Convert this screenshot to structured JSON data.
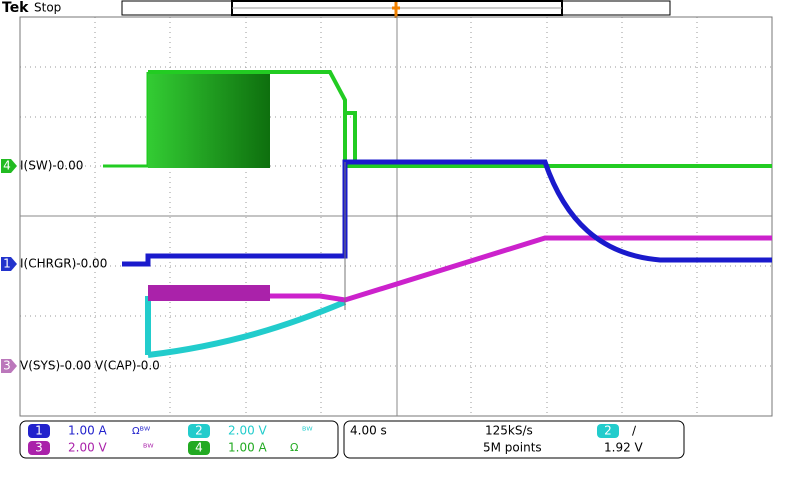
{
  "header": {
    "brand": "Tek",
    "status": "Stop"
  },
  "channel_labels": [
    {
      "badge": "4",
      "text": "I(SW)-0.00"
    },
    {
      "badge": "1",
      "text": "I(CHRGR)-0.00"
    },
    {
      "badge": "3",
      "text": "V(SYS)-0.00 V(CAP)-0.0"
    }
  ],
  "channels": [
    {
      "badge": "1",
      "scale": "1.00 A",
      "icons": "Ωᴮᵂ"
    },
    {
      "badge": "2",
      "scale": "2.00 V",
      "icons": "ᴮᵂ"
    },
    {
      "badge": "3",
      "scale": "2.00 V",
      "icons": "ᴮᵂ"
    },
    {
      "badge": "4",
      "scale": "1.00 A",
      "icons": "Ω"
    }
  ],
  "timebase": {
    "time_per_div": "4.00 s",
    "sample_rate": "125kS/s",
    "record_length": "5M points",
    "trigger_badge": "2",
    "trigger_slope": "∕",
    "trigger_level": "1.92 V"
  }
}
